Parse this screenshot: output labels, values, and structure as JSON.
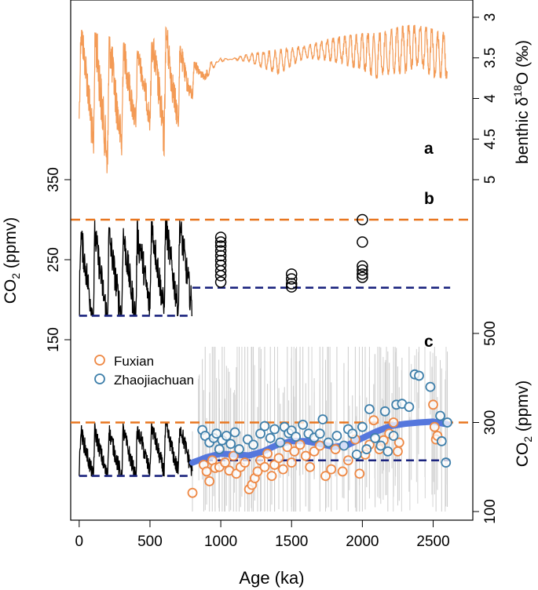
{
  "chart_data": [
    {
      "panel": "a",
      "type": "line",
      "panel_label": "a",
      "xlabel": "Age (ka)",
      "ylabel_prefix": "benthic δ",
      "ylabel_sup": "18",
      "ylabel_suffix": "O (‰)",
      "xlim": [
        -60,
        2780
      ],
      "ylim": [
        3.0,
        5.0
      ],
      "y_inverted": true,
      "yticks": [
        3,
        3.5,
        4,
        4.5,
        5
      ],
      "ytick_labels": [
        "3",
        "3.5",
        "4",
        "4.5",
        "5"
      ],
      "color": "#F39A55",
      "x_range": [
        0,
        2600
      ],
      "glacial_values": [
        4.25,
        5.02,
        4.7,
        4.25,
        4.7,
        4.0,
        3.5,
        3.55,
        3.7,
        3.5,
        3.55,
        3.65,
        3.75,
        3.7,
        3.7,
        3.58,
        3.75,
        3.75
      ],
      "interglacial_values": [
        3.15,
        3.2,
        3.3,
        3.45,
        3.1,
        3.55,
        3.55,
        3.45,
        3.4,
        3.35,
        3.25,
        3.2,
        3.2,
        3.15,
        3.1,
        3.1,
        3.15,
        3.2
      ],
      "envelope_x": [
        0,
        150,
        300,
        450,
        600,
        800,
        1000,
        1200,
        1400,
        1600,
        1800,
        2000,
        2100,
        2200,
        2300,
        2400,
        2500,
        2600
      ]
    },
    {
      "panel": "b",
      "type": "scatter",
      "panel_label": "b",
      "ylabel": "CO2 (ppmv)",
      "ylabel_main": "CO",
      "ylabel_sub": "2",
      "ylabel_unit": " (ppmv)",
      "ylim": [
        150,
        350
      ],
      "yticks": [
        150,
        250,
        350
      ],
      "ytick_labels": [
        "150",
        "250",
        "350"
      ],
      "ice_core_line": {
        "x_range": [
          0,
          800
        ],
        "min": 180,
        "max": 300,
        "color": "#000000"
      },
      "reference_lines": [
        {
          "value": 300,
          "style": "dashed",
          "color": "#E8761F",
          "x_range": [
            -60,
            2780
          ]
        },
        {
          "value": 180,
          "style": "dashed",
          "color": "#1A237E",
          "x_range": [
            0,
            780
          ]
        },
        {
          "value": 215,
          "style": "dashed",
          "color": "#1A237E",
          "x_range": [
            800,
            2780
          ]
        }
      ],
      "points": [
        {
          "x": 1000,
          "y": 278
        },
        {
          "x": 1000,
          "y": 272
        },
        {
          "x": 1000,
          "y": 267
        },
        {
          "x": 1000,
          "y": 261
        },
        {
          "x": 1000,
          "y": 255
        },
        {
          "x": 1000,
          "y": 249
        },
        {
          "x": 1000,
          "y": 243
        },
        {
          "x": 1000,
          "y": 236
        },
        {
          "x": 1000,
          "y": 230
        },
        {
          "x": 1000,
          "y": 222
        },
        {
          "x": 1500,
          "y": 232
        },
        {
          "x": 1500,
          "y": 226
        },
        {
          "x": 1500,
          "y": 220
        },
        {
          "x": 1500,
          "y": 216
        },
        {
          "x": 2000,
          "y": 300
        },
        {
          "x": 2000,
          "y": 272
        },
        {
          "x": 2000,
          "y": 242
        },
        {
          "x": 2000,
          "y": 237
        },
        {
          "x": 2000,
          "y": 232
        },
        {
          "x": 2000,
          "y": 228
        }
      ]
    },
    {
      "panel": "c",
      "type": "scatter",
      "panel_label": "c",
      "ylabel": "CO2 (ppmv)",
      "ylabel_main": "CO",
      "ylabel_sub": "2",
      "ylabel_unit": " (ppmv)",
      "ylim": [
        100,
        500
      ],
      "yticks": [
        100,
        300,
        500
      ],
      "ytick_labels": [
        "100",
        "300",
        "500"
      ],
      "legend_position": "center-left",
      "reference_lines": [
        {
          "value": 300,
          "style": "dashed",
          "color": "#E8761F"
        },
        {
          "value": 180,
          "style": "dashed",
          "color": "#1A237E",
          "x_range": [
            0,
            780
          ]
        },
        {
          "value": 215,
          "style": "dashed",
          "color": "#1A237E",
          "x_range": [
            800,
            2780
          ]
        }
      ],
      "ice_core_line": {
        "x_range": [
          0,
          800
        ],
        "min": 180,
        "max": 300,
        "color": "#000000"
      },
      "smooth_curve": {
        "color": "#5577DD",
        "x": [
          800,
          900,
          1000,
          1100,
          1200,
          1300,
          1400,
          1500,
          1600,
          1700,
          1800,
          1900,
          2000,
          2100,
          2200,
          2300,
          2400,
          2500,
          2600
        ],
        "y": [
          210,
          222,
          230,
          228,
          226,
          235,
          250,
          258,
          258,
          252,
          245,
          250,
          265,
          280,
          292,
          297,
          300,
          302,
          296
        ]
      },
      "series": [
        {
          "name": "Fuxian",
          "color": "#EE8844",
          "points": [
            {
              "x": 800,
              "y": 142
            },
            {
              "x": 880,
              "y": 205
            },
            {
              "x": 900,
              "y": 190
            },
            {
              "x": 920,
              "y": 168
            },
            {
              "x": 940,
              "y": 215
            },
            {
              "x": 960,
              "y": 198
            },
            {
              "x": 990,
              "y": 200
            },
            {
              "x": 1030,
              "y": 210
            },
            {
              "x": 1060,
              "y": 192
            },
            {
              "x": 1090,
              "y": 225
            },
            {
              "x": 1110,
              "y": 185
            },
            {
              "x": 1140,
              "y": 200
            },
            {
              "x": 1170,
              "y": 210
            },
            {
              "x": 1200,
              "y": 150
            },
            {
              "x": 1220,
              "y": 160
            },
            {
              "x": 1240,
              "y": 175
            },
            {
              "x": 1260,
              "y": 190
            },
            {
              "x": 1280,
              "y": 215
            },
            {
              "x": 1310,
              "y": 200
            },
            {
              "x": 1330,
              "y": 230
            },
            {
              "x": 1360,
              "y": 180
            },
            {
              "x": 1380,
              "y": 205
            },
            {
              "x": 1410,
              "y": 220
            },
            {
              "x": 1440,
              "y": 195
            },
            {
              "x": 1470,
              "y": 245
            },
            {
              "x": 1500,
              "y": 210
            },
            {
              "x": 1520,
              "y": 235
            },
            {
              "x": 1560,
              "y": 250
            },
            {
              "x": 1600,
              "y": 225
            },
            {
              "x": 1630,
              "y": 200
            },
            {
              "x": 1660,
              "y": 235
            },
            {
              "x": 1700,
              "y": 248
            },
            {
              "x": 1740,
              "y": 180
            },
            {
              "x": 1780,
              "y": 195
            },
            {
              "x": 1810,
              "y": 240
            },
            {
              "x": 1860,
              "y": 190
            },
            {
              "x": 1900,
              "y": 215
            },
            {
              "x": 1950,
              "y": 262
            },
            {
              "x": 1980,
              "y": 185
            },
            {
              "x": 2020,
              "y": 228
            },
            {
              "x": 2050,
              "y": 250
            },
            {
              "x": 2080,
              "y": 305
            },
            {
              "x": 2120,
              "y": 240
            },
            {
              "x": 2150,
              "y": 260
            },
            {
              "x": 2190,
              "y": 275
            },
            {
              "x": 2220,
              "y": 300
            },
            {
              "x": 2250,
              "y": 235
            },
            {
              "x": 2260,
              "y": 255
            },
            {
              "x": 2500,
              "y": 340
            },
            {
              "x": 2510,
              "y": 290
            },
            {
              "x": 2520,
              "y": 262
            },
            {
              "x": 2530,
              "y": 270
            }
          ]
        },
        {
          "name": "Zhaojiachuan",
          "color": "#3E7FAA",
          "points": [
            {
              "x": 870,
              "y": 283
            },
            {
              "x": 890,
              "y": 270
            },
            {
              "x": 920,
              "y": 255
            },
            {
              "x": 950,
              "y": 265
            },
            {
              "x": 970,
              "y": 275
            },
            {
              "x": 990,
              "y": 240
            },
            {
              "x": 1010,
              "y": 260
            },
            {
              "x": 1040,
              "y": 270
            },
            {
              "x": 1070,
              "y": 252
            },
            {
              "x": 1100,
              "y": 278
            },
            {
              "x": 1130,
              "y": 240
            },
            {
              "x": 1190,
              "y": 262
            },
            {
              "x": 1230,
              "y": 250
            },
            {
              "x": 1280,
              "y": 275
            },
            {
              "x": 1310,
              "y": 292
            },
            {
              "x": 1350,
              "y": 265
            },
            {
              "x": 1380,
              "y": 285
            },
            {
              "x": 1420,
              "y": 255
            },
            {
              "x": 1450,
              "y": 290
            },
            {
              "x": 1480,
              "y": 276
            },
            {
              "x": 1500,
              "y": 282
            },
            {
              "x": 1530,
              "y": 268
            },
            {
              "x": 1580,
              "y": 295
            },
            {
              "x": 1620,
              "y": 275
            },
            {
              "x": 1660,
              "y": 266
            },
            {
              "x": 1700,
              "y": 275
            },
            {
              "x": 1720,
              "y": 307
            },
            {
              "x": 1760,
              "y": 255
            },
            {
              "x": 1820,
              "y": 270
            },
            {
              "x": 1870,
              "y": 248
            },
            {
              "x": 1900,
              "y": 285
            },
            {
              "x": 1930,
              "y": 275
            },
            {
              "x": 1960,
              "y": 228
            },
            {
              "x": 2000,
              "y": 290
            },
            {
              "x": 2030,
              "y": 240
            },
            {
              "x": 2050,
              "y": 330
            },
            {
              "x": 2090,
              "y": 265
            },
            {
              "x": 2130,
              "y": 248
            },
            {
              "x": 2160,
              "y": 325
            },
            {
              "x": 2180,
              "y": 235
            },
            {
              "x": 2220,
              "y": 270
            },
            {
              "x": 2240,
              "y": 340
            },
            {
              "x": 2280,
              "y": 342
            },
            {
              "x": 2330,
              "y": 335
            },
            {
              "x": 2370,
              "y": 408
            },
            {
              "x": 2400,
              "y": 405
            },
            {
              "x": 2480,
              "y": 380
            },
            {
              "x": 2550,
              "y": 315
            },
            {
              "x": 2560,
              "y": 258
            },
            {
              "x": 2590,
              "y": 210
            },
            {
              "x": 2600,
              "y": 300
            }
          ]
        }
      ]
    }
  ],
  "x_axis": {
    "label": "Age (ka)",
    "ticks": [
      0,
      500,
      1000,
      1500,
      2000,
      2500
    ],
    "tick_labels": [
      "0",
      "500",
      "1000",
      "1500",
      "2000",
      "2500"
    ],
    "range": [
      -60,
      2780
    ]
  }
}
